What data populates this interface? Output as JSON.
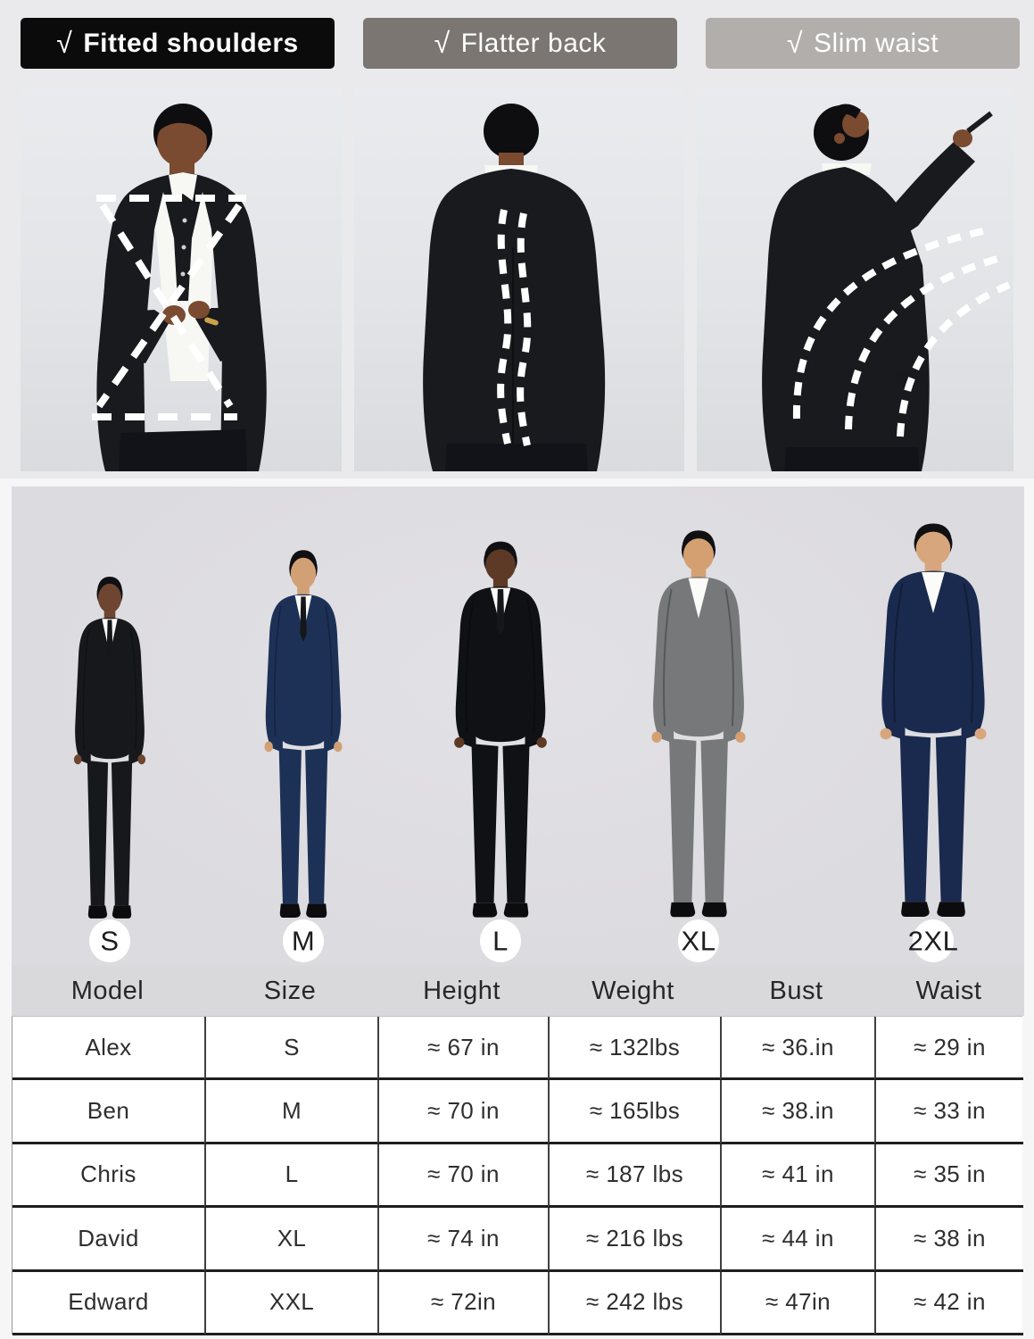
{
  "features": [
    {
      "check": "√",
      "label": "Fitted shoulders",
      "bg_color": "#0b0b0b"
    },
    {
      "check": "√",
      "label": "Flatter back",
      "bg_color": "#7b7672"
    },
    {
      "check": "√",
      "label": "Slim waist",
      "bg_color": "#b1aeac"
    }
  ],
  "size_labels": [
    "S",
    "M",
    "L",
    "XL",
    "2XL"
  ],
  "models": [
    {
      "name": "Alex",
      "size": "S",
      "suit_color": "#17181b",
      "skin_color": "#6d4530"
    },
    {
      "name": "Ben",
      "size": "M",
      "suit_color": "#1d3157",
      "skin_color": "#d2a075"
    },
    {
      "name": "Chris",
      "size": "L",
      "suit_color": "#101114",
      "skin_color": "#5d3a26"
    },
    {
      "name": "David",
      "size": "XL",
      "suit_color": "#77787a",
      "skin_color": "#d4a072"
    },
    {
      "name": "Edward",
      "size": "2XL",
      "suit_color": "#1a2a4e",
      "skin_color": "#d7a67c"
    }
  ],
  "size_chart": {
    "columns": [
      "Model",
      "Size",
      "Height",
      "Weight",
      "Bust",
      "Waist"
    ],
    "rows": [
      [
        "Alex",
        "S",
        "≈ 67 in",
        "≈ 132lbs",
        "≈ 36.in",
        "≈ 29 in"
      ],
      [
        "Ben",
        "M",
        "≈ 70 in",
        "≈ 165lbs",
        "≈ 38.in",
        "≈ 33 in"
      ],
      [
        "Chris",
        "L",
        "≈ 70 in",
        "≈ 187 lbs",
        "≈ 41 in",
        "≈ 35 in"
      ],
      [
        "David",
        "XL",
        "≈ 74 in",
        "≈ 216 lbs",
        "≈ 44 in",
        "≈ 38 in"
      ],
      [
        "Edward",
        "XXL",
        "≈ 72in",
        "≈ 242 lbs",
        "≈ 47in",
        "≈ 42 in"
      ]
    ]
  }
}
